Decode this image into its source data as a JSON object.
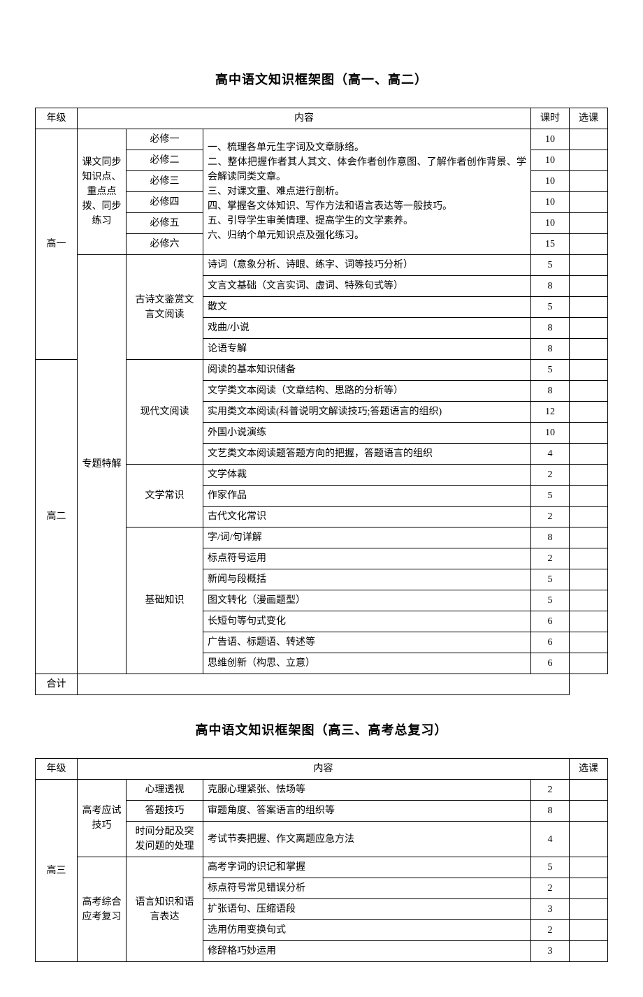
{
  "titles": {
    "t1": "高中语文知识框架图（高一、高二）",
    "t2": "高中语文知识框架图（高三、高考总复习）"
  },
  "headers": {
    "grade": "年级",
    "content": "内容",
    "hours": "课时",
    "pick": "选课"
  },
  "grades": {
    "g1": "高一",
    "g2": "高二",
    "g3": "高三",
    "total": "合计"
  },
  "categories": {
    "sync": "课文同步知识点、重点点拨、同步练习",
    "special": "专题特解",
    "exam_skill": "高考应试技巧",
    "review": "高考综合应考复习"
  },
  "subcats": {
    "bx1": "必修一",
    "bx2": "必修二",
    "bx3": "必修三",
    "bx4": "必修四",
    "bx5": "必修五",
    "bx6": "必修六",
    "poetry": "古诗文鉴赏文言文阅读",
    "modern": "现代文阅读",
    "literary": "文学常识",
    "basic": "基础知识",
    "psych": "心理透视",
    "ans": "答题技巧",
    "time": "时间分配及突发问题的处理",
    "lang": "语言知识和语言表达"
  },
  "sync_desc": "一、梳理各单元生字词及文章脉络。\n二、整体把握作者其人其文、体会作者创作意图、了解作者创作背景、学会解读同类文章。\n三、对课文重、难点进行剖析。\n四、掌握各文体知识、写作方法和语言表达等一般技巧。\n五、引导学生审美情理、提高学生的文学素养。\n六、归纳个单元知识点及强化练习。",
  "sync_hours": {
    "h1": "10",
    "h2": "10",
    "h3": "10",
    "h4": "10",
    "h5": "10",
    "h6": "15"
  },
  "poetry_rows": [
    {
      "desc": "诗词（意象分析、诗眼、练字、词等技巧分析）",
      "hours": "5"
    },
    {
      "desc": "文言文基础（文言实词、虚词、特殊句式等）",
      "hours": "8"
    },
    {
      "desc": "散文",
      "hours": "5"
    },
    {
      "desc": "戏曲/小说",
      "hours": "8"
    },
    {
      "desc": "论语专解",
      "hours": "8"
    }
  ],
  "modern_rows": [
    {
      "desc": "阅读的基本知识储备",
      "hours": "5"
    },
    {
      "desc": "文学类文本阅读（文章结构、思路的分析等）",
      "hours": "8"
    },
    {
      "desc": "实用类文本阅读(科普说明文解读技巧;答题语言的组织)",
      "hours": "12"
    },
    {
      "desc": "外国小说演练",
      "hours": "10"
    },
    {
      "desc": "文艺类文本阅读题答题方向的把握，答题语言的组织",
      "hours": "4"
    }
  ],
  "literary_rows": [
    {
      "desc": "文学体裁",
      "hours": "2"
    },
    {
      "desc": "作家作品",
      "hours": "5"
    },
    {
      "desc": "古代文化常识",
      "hours": "2"
    }
  ],
  "basic_rows": [
    {
      "desc": "字/词/句详解",
      "hours": "8"
    },
    {
      "desc": "标点符号运用",
      "hours": "2"
    },
    {
      "desc": "新闻与段概括",
      "hours": "5"
    },
    {
      "desc": "图文转化（漫画题型）",
      "hours": "5"
    },
    {
      "desc": "长短句等句式变化",
      "hours": "6"
    },
    {
      "desc": "广告语、标题语、转述等",
      "hours": "6"
    },
    {
      "desc": "思维创新（构思、立意）",
      "hours": "6"
    }
  ],
  "g3_simple": [
    {
      "desc": "克服心理紧张、怯场等",
      "hours": "2"
    },
    {
      "desc": "审题角度、答案语言的组织等",
      "hours": "8"
    },
    {
      "desc": "考试节奏把握、作文离题应急方法",
      "hours": "4"
    }
  ],
  "lang_rows": [
    {
      "desc": "高考字词的识记和掌握",
      "hours": "5"
    },
    {
      "desc": "标点符号常见错误分析",
      "hours": "2"
    },
    {
      "desc": "扩张语句、压缩语段",
      "hours": "3"
    },
    {
      "desc": "选用仿用变换句式",
      "hours": "2"
    },
    {
      "desc": "修辞格巧妙运用",
      "hours": "3"
    }
  ]
}
